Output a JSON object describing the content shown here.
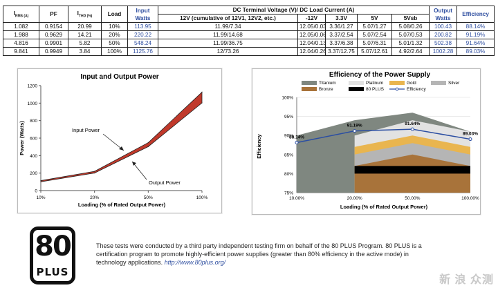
{
  "table": {
    "headers": {
      "irms": "I",
      "irms_sub": "RMS (A)",
      "pf": "PF",
      "ithd": "I",
      "ithd_sub": "THD (%)",
      "load": "Load",
      "input_watts": "Input Watts",
      "dc_group": "DC Terminal Voltage (V)/ DC Load Current (A)",
      "dc_12v_cum": "12V (cumulative of 12V1, 12V2, etc.)",
      "dc_m12v": "-12V",
      "dc_3v3": "3.3V",
      "dc_5v": "5V",
      "dc_5vsb": "5Vsb",
      "output_watts": "Output Watts",
      "efficiency": "Efficiency"
    },
    "rows": [
      {
        "irms": "1.082",
        "pf": "0.9154",
        "ithd": "20.99",
        "load": "10%",
        "input": "113.95",
        "v12": "11.99/7.34",
        "m12": "12.05/0.03",
        "v33": "3.36/1.27",
        "v5": "5.07/1.27",
        "vsb": "5.08/0.26",
        "output": "100.43",
        "eff": "88.14%"
      },
      {
        "irms": "1.988",
        "pf": "0.9629",
        "ithd": "14.21",
        "load": "20%",
        "input": "220.22",
        "v12": "11.99/14.68",
        "m12": "12.05/0.06",
        "v33": "3.37/2.54",
        "v5": "5.07/2.54",
        "vsb": "5.07/0.53",
        "output": "200.82",
        "eff": "91.19%"
      },
      {
        "irms": "4.816",
        "pf": "0.9901",
        "ithd": "5.82",
        "load": "50%",
        "input": "548.24",
        "v12": "11.99/36.75",
        "m12": "12.04/0.13",
        "v33": "3.37/6.38",
        "v5": "5.07/6.31",
        "vsb": "5.01/1.32",
        "output": "502.38",
        "eff": "91.64%"
      },
      {
        "irms": "9.841",
        "pf": "0.9949",
        "ithd": "3.84",
        "load": "100%",
        "input": "1125.76",
        "v12": "12/73.26",
        "m12": "12.04/0.26",
        "v33": "3.37/12.75",
        "v5": "5.07/12.61",
        "vsb": "4.92/2.64",
        "output": "1002.28",
        "eff": "89.03%"
      }
    ]
  },
  "chart_data": [
    {
      "type": "line",
      "title": "Input and Output Power",
      "xlabel": "Loading (% of Rated Output Power)",
      "ylabel": "Power (Watts)",
      "categories": [
        "10%",
        "20%",
        "50%",
        "100%"
      ],
      "ylim": [
        0,
        1200
      ],
      "yticks": [
        "0",
        "200",
        "400",
        "600",
        "800",
        "1000",
        "1200"
      ],
      "series": [
        {
          "name": "Input Power",
          "values": [
            113.95,
            220.22,
            548.24,
            1125.76
          ]
        },
        {
          "name": "Output Power",
          "values": [
            100.43,
            200.82,
            502.38,
            1002.28
          ]
        }
      ],
      "annotations": [
        "Input Power",
        "Output Power"
      ],
      "color": "#c0392b"
    },
    {
      "type": "line",
      "title": "Efficiency of the Power Supply",
      "xlabel": "Loading (% of Rated Output Power)",
      "ylabel": "Efficiency",
      "categories": [
        "10.00%",
        "20.00%",
        "50.00%",
        "100.00%"
      ],
      "ylim": [
        75,
        100
      ],
      "yticks": [
        "75%",
        "80%",
        "85%",
        "90%",
        "95%",
        "100%"
      ],
      "series": [
        {
          "name": "Efficiency",
          "values": [
            88.14,
            91.19,
            91.64,
            89.03
          ]
        }
      ],
      "data_labels": [
        "88.14%",
        "91.19%",
        "91.64%",
        "89.03%"
      ],
      "legend": [
        "Titanium",
        "Platinum",
        "Gold",
        "Silver",
        "Bronze",
        "80 PLUS",
        "Efficiency"
      ],
      "colors": {
        "Titanium": "#7f8780",
        "Platinum": "#e2e2e2",
        "Gold": "#e9b54f",
        "Silver": "#b5b5b5",
        "Bronze": "#a8733a",
        "80 PLUS": "#000000",
        "Efficiency": "#2b4ea2"
      },
      "levels": {
        "Titanium": [
          90,
          94,
          96,
          91
        ],
        "Platinum": [
          null,
          90,
          94,
          91
        ],
        "Gold": [
          null,
          87,
          90,
          87
        ],
        "Silver": [
          null,
          85,
          88,
          85
        ],
        "Bronze": [
          null,
          82,
          85,
          82
        ],
        "80 PLUS": [
          null,
          80,
          80,
          80
        ]
      }
    }
  ],
  "logo": {
    "number": "80",
    "word": "PLUS"
  },
  "note": {
    "text": "These tests were conducted by a third party independent testing firm on behalf of the 80 PLUS Program. 80 PLUS is a certification program to promote highly-efficient power supplies (greater than 80% efficiency in the active mode) in technology applications.",
    "link": "http://www.80plus.org/"
  },
  "watermark": "新 浪 众测"
}
